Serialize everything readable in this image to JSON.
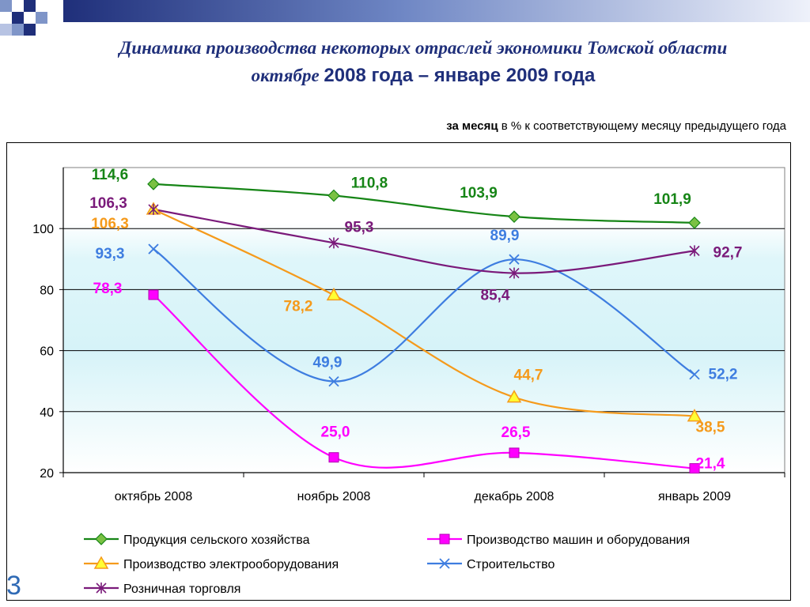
{
  "title_line1": "Динамика производства некоторых отраслей экономики Томской области",
  "title_line2_prefix": "октябре",
  "title_line2_rest": "2008 года – январе 2009 года",
  "subtitle_bold": "за месяц",
  "subtitle_rest": "в % к соответствующему месяцу предыдущего года",
  "page_number": "3",
  "colors": {
    "title": "#1f2f7a",
    "plot_bg_top": "#ffffff",
    "plot_band": "#d6f3f8",
    "frame_blue": "#4b6fae"
  },
  "chart_data": {
    "type": "line",
    "categories": [
      "октябрь 2008",
      "ноябрь 2008",
      "декабрь 2008",
      "январь 2009"
    ],
    "ylim": [
      20,
      120
    ],
    "yticks": [
      "20",
      "40",
      "60",
      "80",
      "100"
    ],
    "grid": true,
    "legend_position": "bottom",
    "series": [
      {
        "name": "Продукция сельского хозяйства",
        "color": "#168516",
        "marker": "diamond",
        "values": [
          114.6,
          110.8,
          103.9,
          101.9
        ],
        "labels": [
          "114,6",
          "110,8",
          "103,9",
          "101,9"
        ]
      },
      {
        "name": "Производство машин и оборудования",
        "color": "#ff00ff",
        "marker": "square",
        "values": [
          78.3,
          25.0,
          26.5,
          21.4
        ],
        "labels": [
          "78,3",
          "25,0",
          "26,5",
          "21,4"
        ]
      },
      {
        "name": "Производство электрооборудования",
        "color": "#f59a1b",
        "marker": "triangle",
        "values": [
          106.3,
          78.2,
          44.7,
          38.5
        ],
        "labels": [
          "106,3",
          "78,2",
          "44,7",
          "38,5"
        ]
      },
      {
        "name": "Строительство",
        "color": "#3e7de0",
        "marker": "x",
        "values": [
          93.3,
          49.9,
          89.9,
          52.2
        ],
        "labels": [
          "93,3",
          "49,9",
          "89,9",
          "52,2"
        ]
      },
      {
        "name": "Розничная торговля",
        "color": "#7a1a7a",
        "marker": "star",
        "values": [
          106.3,
          95.3,
          85.4,
          92.7
        ],
        "labels": [
          "106,3",
          "95,3",
          "85,4",
          "92,7"
        ]
      }
    ]
  }
}
